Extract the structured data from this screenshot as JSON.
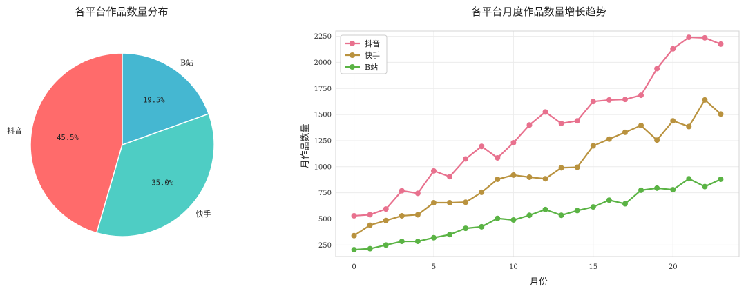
{
  "chart_data": [
    {
      "type": "pie",
      "title": "各平台作品数量分布",
      "labels": [
        "抖音",
        "快手",
        "B站"
      ],
      "values": [
        45.5,
        35.0,
        19.5
      ],
      "percent_labels": [
        "45.5%",
        "35.0%",
        "19.5%"
      ],
      "colors": [
        "#ff6b6b",
        "#4ecdc4",
        "#45b7d1"
      ]
    },
    {
      "type": "line",
      "title": "各平台月度作品数量增长趋势",
      "xlabel": "月份",
      "ylabel": "月作品数量",
      "x": [
        0,
        1,
        2,
        3,
        4,
        5,
        6,
        7,
        8,
        9,
        10,
        11,
        12,
        13,
        14,
        15,
        16,
        17,
        18,
        19,
        20,
        21,
        22,
        23
      ],
      "xlim": [
        -1.15,
        24.15
      ],
      "ylim": [
        140,
        2300
      ],
      "xticks": [
        0,
        5,
        10,
        15,
        20
      ],
      "yticks": [
        250,
        500,
        750,
        1000,
        1250,
        1500,
        1750,
        2000,
        2250
      ],
      "grid": true,
      "legend": "top-left",
      "series": [
        {
          "name": "抖音",
          "color": "#e8718e",
          "values": [
            530,
            540,
            595,
            770,
            745,
            960,
            905,
            1075,
            1195,
            1085,
            1230,
            1400,
            1525,
            1415,
            1440,
            1625,
            1640,
            1645,
            1685,
            1940,
            2130,
            2240,
            2235,
            2175
          ]
        },
        {
          "name": "快手",
          "color": "#b9923e",
          "values": [
            340,
            440,
            485,
            530,
            540,
            655,
            655,
            660,
            755,
            880,
            920,
            900,
            885,
            990,
            995,
            1200,
            1265,
            1330,
            1395,
            1255,
            1440,
            1385,
            1640,
            1505
          ]
        },
        {
          "name": "B站",
          "color": "#5ab344",
          "values": [
            205,
            215,
            250,
            285,
            285,
            320,
            350,
            410,
            425,
            505,
            490,
            535,
            590,
            535,
            580,
            615,
            680,
            645,
            775,
            795,
            780,
            885,
            810,
            880
          ]
        }
      ]
    }
  ]
}
